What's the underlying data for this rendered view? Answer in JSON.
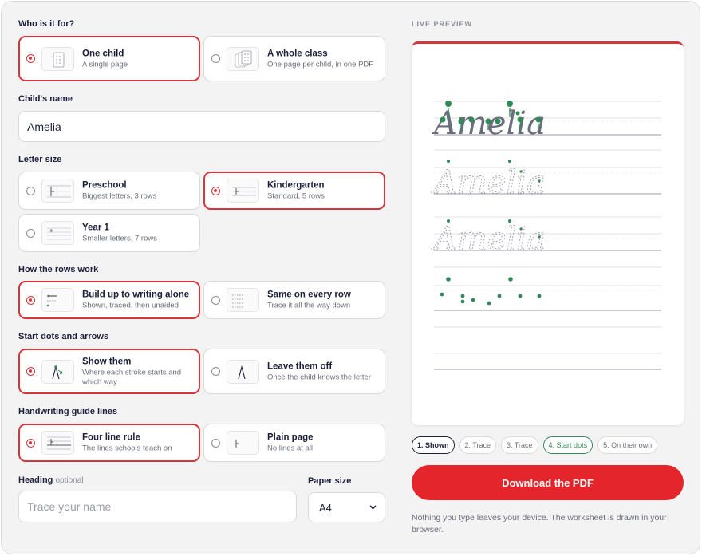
{
  "form": {
    "who": {
      "label": "Who is it for?",
      "options": [
        {
          "title": "One child",
          "sub": "A single page",
          "selected": true
        },
        {
          "title": "A whole class",
          "sub": "One page per child, in one PDF",
          "selected": false
        }
      ]
    },
    "child_name": {
      "label": "Child's name",
      "value": "Amelia"
    },
    "letter_size": {
      "label": "Letter size",
      "options": [
        {
          "title": "Preschool",
          "sub": "Biggest letters, 3 rows",
          "selected": false
        },
        {
          "title": "Kindergarten",
          "sub": "Standard, 5 rows",
          "selected": true
        },
        {
          "title": "Year 1",
          "sub": "Smaller letters, 7 rows",
          "selected": false
        }
      ]
    },
    "rows": {
      "label": "How the rows work",
      "options": [
        {
          "title": "Build up to writing alone",
          "sub": "Shown, traced, then unaided",
          "selected": true
        },
        {
          "title": "Same on every row",
          "sub": "Trace it all the way down",
          "selected": false
        }
      ]
    },
    "dots": {
      "label": "Start dots and arrows",
      "options": [
        {
          "title": "Show them",
          "sub": "Where each stroke starts and which way",
          "selected": true
        },
        {
          "title": "Leave them off",
          "sub": "Once the child knows the letter",
          "selected": false
        }
      ]
    },
    "guides": {
      "label": "Handwriting guide lines",
      "options": [
        {
          "title": "Four line rule",
          "sub": "The lines schools teach on",
          "selected": true
        },
        {
          "title": "Plain page",
          "sub": "No lines at all",
          "selected": false
        }
      ]
    },
    "heading": {
      "label": "Heading",
      "optional": "optional",
      "placeholder": "Trace your name"
    },
    "paper": {
      "label": "Paper size",
      "value": "A4"
    }
  },
  "preview": {
    "label": "LIVE PREVIEW",
    "word": "Amelia",
    "accent": "#d6353a",
    "dot_color": "#2f8b57",
    "steps": [
      "1. Shown",
      "2. Trace",
      "3. Trace",
      "4. Start dots",
      "5. On their own"
    ],
    "download_label": "Download the PDF",
    "note": "Nothing you type leaves your device. The worksheet is drawn in your browser."
  },
  "icons": {
    "chevron": "chevron-down-icon"
  }
}
